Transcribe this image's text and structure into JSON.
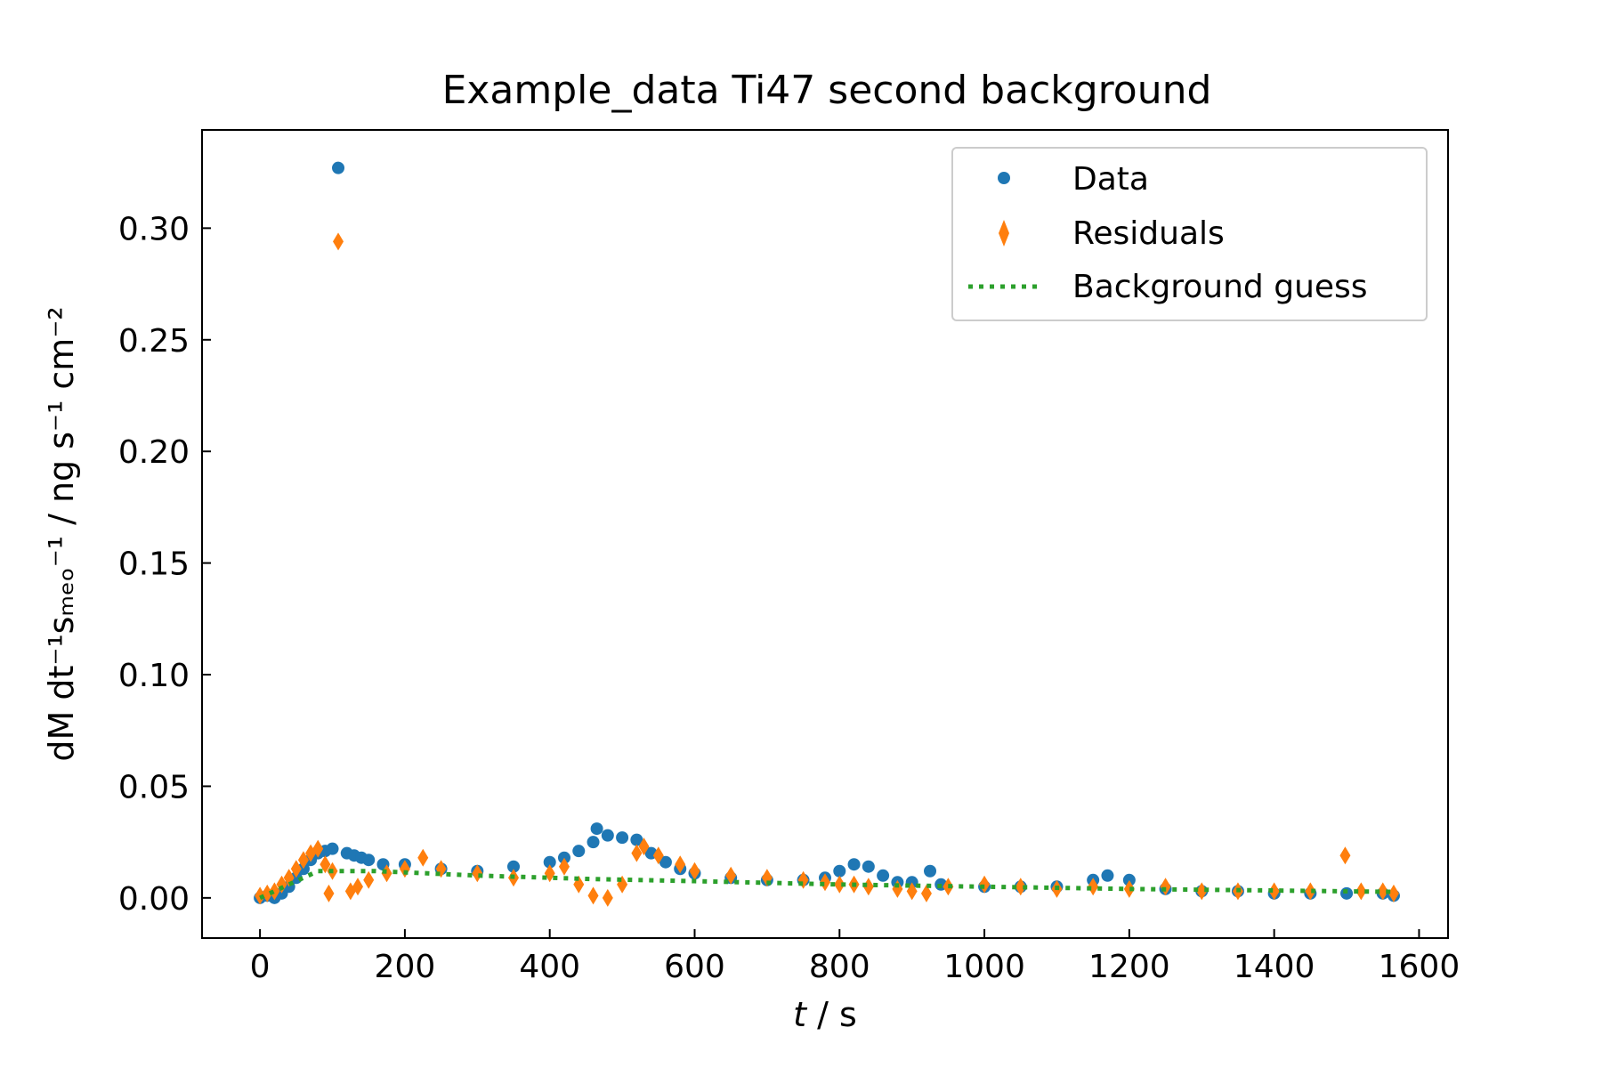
{
  "chart_data": {
    "type": "scatter",
    "title": "Example_data Ti47 second background",
    "xlabel": {
      "italic_part": "t",
      "rest": " / s"
    },
    "ylabel": "dM dt⁻¹sₘₑₒ⁻¹ / ng s⁻¹ cm⁻²",
    "xlim": [
      -80,
      1640
    ],
    "ylim": [
      -0.018,
      0.344
    ],
    "xticks": [
      0,
      200,
      400,
      600,
      800,
      1000,
      1200,
      1400,
      1600
    ],
    "yticks": [
      0.0,
      0.05,
      0.1,
      0.15,
      0.2,
      0.25,
      0.3
    ],
    "xtick_labels": [
      "0",
      "200",
      "400",
      "600",
      "800",
      "1000",
      "1200",
      "1400",
      "1600"
    ],
    "ytick_labels": [
      "0.00",
      "0.05",
      "0.10",
      "0.15",
      "0.20",
      "0.25",
      "0.30"
    ],
    "tick_direction": "in",
    "grid": false,
    "legend_position": "top-right",
    "colors": {
      "data": "#1f77b4",
      "residuals": "#ff7f0e",
      "background": "#2ca02c"
    },
    "series": [
      {
        "name": "Data",
        "marker": "circle",
        "points": [
          [
            0,
            0.0
          ],
          [
            10,
            0.001
          ],
          [
            20,
            0.0
          ],
          [
            30,
            0.002
          ],
          [
            40,
            0.005
          ],
          [
            50,
            0.009
          ],
          [
            60,
            0.013
          ],
          [
            70,
            0.017
          ],
          [
            80,
            0.02
          ],
          [
            90,
            0.021
          ],
          [
            100,
            0.022
          ],
          [
            108,
            0.327
          ],
          [
            120,
            0.02
          ],
          [
            130,
            0.019
          ],
          [
            140,
            0.018
          ],
          [
            150,
            0.017
          ],
          [
            170,
            0.015
          ],
          [
            200,
            0.015
          ],
          [
            250,
            0.013
          ],
          [
            300,
            0.012
          ],
          [
            350,
            0.014
          ],
          [
            400,
            0.016
          ],
          [
            420,
            0.018
          ],
          [
            440,
            0.021
          ],
          [
            460,
            0.025
          ],
          [
            465,
            0.031
          ],
          [
            480,
            0.028
          ],
          [
            500,
            0.027
          ],
          [
            520,
            0.026
          ],
          [
            540,
            0.02
          ],
          [
            560,
            0.016
          ],
          [
            580,
            0.013
          ],
          [
            600,
            0.011
          ],
          [
            650,
            0.009
          ],
          [
            700,
            0.008
          ],
          [
            750,
            0.008
          ],
          [
            780,
            0.009
          ],
          [
            800,
            0.012
          ],
          [
            820,
            0.015
          ],
          [
            840,
            0.014
          ],
          [
            860,
            0.01
          ],
          [
            880,
            0.007
          ],
          [
            900,
            0.007
          ],
          [
            925,
            0.012
          ],
          [
            940,
            0.006
          ],
          [
            1000,
            0.005
          ],
          [
            1050,
            0.005
          ],
          [
            1100,
            0.005
          ],
          [
            1150,
            0.008
          ],
          [
            1170,
            0.01
          ],
          [
            1200,
            0.008
          ],
          [
            1250,
            0.004
          ],
          [
            1300,
            0.003
          ],
          [
            1350,
            0.003
          ],
          [
            1400,
            0.002
          ],
          [
            1450,
            0.002
          ],
          [
            1500,
            0.002
          ],
          [
            1550,
            0.002
          ],
          [
            1565,
            0.001
          ]
        ]
      },
      {
        "name": "Residuals",
        "marker": "thin_diamond",
        "points": [
          [
            0,
            0.001
          ],
          [
            10,
            0.002
          ],
          [
            20,
            0.003
          ],
          [
            30,
            0.006
          ],
          [
            40,
            0.009
          ],
          [
            50,
            0.013
          ],
          [
            60,
            0.017
          ],
          [
            70,
            0.02
          ],
          [
            80,
            0.022
          ],
          [
            90,
            0.015
          ],
          [
            95,
            0.002
          ],
          [
            100,
            0.012
          ],
          [
            108,
            0.294
          ],
          [
            125,
            0.003
          ],
          [
            135,
            0.005
          ],
          [
            150,
            0.008
          ],
          [
            175,
            0.011
          ],
          [
            200,
            0.013
          ],
          [
            225,
            0.018
          ],
          [
            250,
            0.013
          ],
          [
            300,
            0.011
          ],
          [
            350,
            0.009
          ],
          [
            400,
            0.011
          ],
          [
            420,
            0.014
          ],
          [
            440,
            0.006
          ],
          [
            460,
            0.001
          ],
          [
            480,
            0.0
          ],
          [
            500,
            0.006
          ],
          [
            520,
            0.02
          ],
          [
            530,
            0.023
          ],
          [
            550,
            0.019
          ],
          [
            580,
            0.015
          ],
          [
            600,
            0.012
          ],
          [
            650,
            0.01
          ],
          [
            700,
            0.009
          ],
          [
            750,
            0.008
          ],
          [
            780,
            0.007
          ],
          [
            800,
            0.006
          ],
          [
            820,
            0.006
          ],
          [
            840,
            0.005
          ],
          [
            880,
            0.004
          ],
          [
            900,
            0.003
          ],
          [
            920,
            0.002
          ],
          [
            950,
            0.005
          ],
          [
            1000,
            0.006
          ],
          [
            1050,
            0.005
          ],
          [
            1100,
            0.004
          ],
          [
            1150,
            0.005
          ],
          [
            1200,
            0.004
          ],
          [
            1250,
            0.005
          ],
          [
            1300,
            0.003
          ],
          [
            1350,
            0.003
          ],
          [
            1400,
            0.003
          ],
          [
            1450,
            0.003
          ],
          [
            1498,
            0.019
          ],
          [
            1520,
            0.003
          ],
          [
            1550,
            0.003
          ],
          [
            1565,
            0.002
          ]
        ]
      },
      {
        "name": "Background guess",
        "linestyle": "dotted",
        "points": [
          [
            0,
            0.0
          ],
          [
            80,
            0.012
          ],
          [
            100,
            0.012
          ],
          [
            160,
            0.012
          ],
          [
            300,
            0.01
          ],
          [
            450,
            0.0085
          ],
          [
            600,
            0.0075
          ],
          [
            800,
            0.006
          ],
          [
            1000,
            0.005
          ],
          [
            1200,
            0.004
          ],
          [
            1400,
            0.0033
          ],
          [
            1565,
            0.0027
          ]
        ]
      }
    ]
  }
}
